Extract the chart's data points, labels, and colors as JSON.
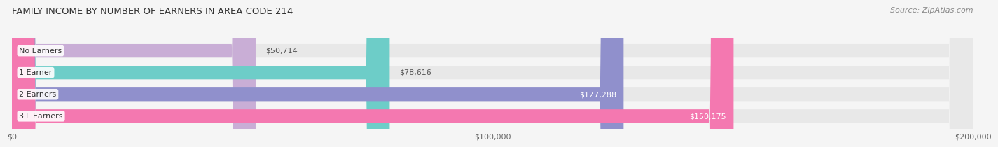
{
  "title": "FAMILY INCOME BY NUMBER OF EARNERS IN AREA CODE 214",
  "source": "Source: ZipAtlas.com",
  "categories": [
    "No Earners",
    "1 Earner",
    "2 Earners",
    "3+ Earners"
  ],
  "values": [
    50714,
    78616,
    127288,
    150175
  ],
  "bar_colors": [
    "#c9aed6",
    "#6dcdc8",
    "#9090cc",
    "#f478b0"
  ],
  "bar_bg_color": "#e8e8e8",
  "value_labels": [
    "$50,714",
    "$78,616",
    "$127,288",
    "$150,175"
  ],
  "xlim": [
    0,
    200000
  ],
  "xticks": [
    0,
    100000,
    200000
  ],
  "xtick_labels": [
    "$0",
    "$100,000",
    "$200,000"
  ],
  "background_color": "#f5f5f5",
  "bar_height": 0.62,
  "title_fontsize": 9.5,
  "source_fontsize": 8,
  "label_fontsize": 8,
  "value_fontsize": 8
}
